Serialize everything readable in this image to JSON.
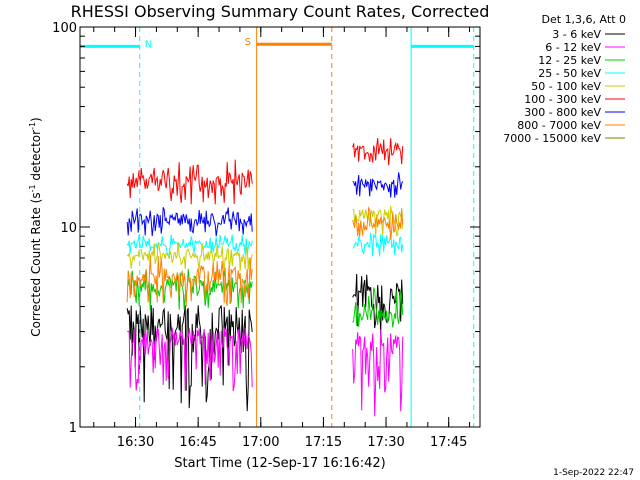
{
  "chart_data": {
    "type": "line",
    "title": "RHESSI Observing Summary Count Rates, Corrected",
    "xlabel": "Start Time (12-Sep-17 16:16:42)",
    "ylabel": "Corrected Count Rate (s",
    "ylabel_sup": "-1",
    "ylabel_mid": " detector",
    "ylabel_end": ")",
    "yscale": "log",
    "ylim": [
      1,
      100
    ],
    "xlim": [
      "16:16:42",
      "17:52:30"
    ],
    "x_ticks": [
      "16:30",
      "16:45",
      "17:00",
      "17:15",
      "17:30",
      "17:45"
    ],
    "y_ticks": [
      "1",
      "10",
      "100"
    ],
    "legend_title": "Det 1,3,6, Att 0",
    "legend_position": "top-right",
    "timestamp": "1-Sep-2022 22:47",
    "series": [
      {
        "name": "3 - 6 keV",
        "color": "#000000",
        "segments": [
          {
            "start": "16:28",
            "end": "16:58",
            "level": 3.3,
            "low": 1.2,
            "high": 4.0
          },
          {
            "start": "17:22",
            "end": "17:34",
            "level": 4.5,
            "low": 2.8,
            "high": 6.0
          }
        ]
      },
      {
        "name": "6 - 12 keV",
        "color": "#ff00ff",
        "segments": [
          {
            "start": "16:28",
            "end": "16:58",
            "level": 2.8,
            "low": 1.5,
            "high": 3.0
          },
          {
            "start": "17:22",
            "end": "17:34",
            "level": 2.6,
            "low": 1.1,
            "high": 3.0
          }
        ]
      },
      {
        "name": "12 - 25 keV",
        "color": "#00cc00",
        "segments": [
          {
            "start": "16:28",
            "end": "16:58",
            "level": 5.0,
            "low": 3.8,
            "high": 6.2
          },
          {
            "start": "17:22",
            "end": "17:34",
            "level": 3.5,
            "low": 3.0,
            "high": 5.0
          }
        ]
      },
      {
        "name": "25 - 50 keV",
        "color": "#00ffff",
        "segments": [
          {
            "start": "16:28",
            "end": "16:58",
            "level": 8.2,
            "low": 7.2,
            "high": 9.2
          },
          {
            "start": "17:22",
            "end": "17:34",
            "level": 8.2,
            "low": 7.0,
            "high": 9.5
          }
        ]
      },
      {
        "name": "50 - 100 keV",
        "color": "#cccc00",
        "segments": [
          {
            "start": "16:28",
            "end": "16:58",
            "level": 7.3,
            "low": 6.0,
            "high": 8.5
          },
          {
            "start": "17:22",
            "end": "17:34",
            "level": 11.5,
            "low": 9.0,
            "high": 13.0
          }
        ]
      },
      {
        "name": "100 - 300 keV",
        "color": "#ff0000",
        "segments": [
          {
            "start": "16:28",
            "end": "16:58",
            "level": 17.0,
            "low": 13.0,
            "high": 22.0
          },
          {
            "start": "17:22",
            "end": "17:34",
            "level": 24.0,
            "low": 20.0,
            "high": 28.0
          }
        ]
      },
      {
        "name": "300 - 800 keV",
        "color": "#0000ff",
        "segments": [
          {
            "start": "16:28",
            "end": "16:58",
            "level": 11.0,
            "low": 9.0,
            "high": 13.0
          },
          {
            "start": "17:22",
            "end": "17:34",
            "level": 16.5,
            "low": 14.0,
            "high": 19.0
          }
        ]
      },
      {
        "name": "800 - 7000 keV",
        "color": "#ff8000",
        "segments": [
          {
            "start": "16:28",
            "end": "16:58",
            "level": 5.6,
            "low": 4.0,
            "high": 7.2
          },
          {
            "start": "17:22",
            "end": "17:34",
            "level": 10.3,
            "low": 8.5,
            "high": 12.5
          }
        ]
      },
      {
        "name": "7000 - 15000 keV",
        "color": "#808000",
        "segments": []
      }
    ],
    "markers": [
      {
        "label": "N",
        "color": "#00ffff",
        "level": 80,
        "bar_start": "16:16:42",
        "bar_end": "16:31",
        "lines": [
          {
            "time": "16:16:42",
            "style": "solid"
          },
          {
            "time": "16:31",
            "style": "dashed"
          }
        ]
      },
      {
        "label": "S",
        "color": "#ff8000",
        "level": 82,
        "bar_start": "16:59",
        "bar_end": "17:17",
        "lines": [
          {
            "time": "16:59",
            "style": "solid"
          },
          {
            "time": "17:17",
            "style": "dashed"
          }
        ]
      },
      {
        "label": "",
        "color": "#00ffff",
        "level": 80,
        "bar_start": "17:36",
        "bar_end": "17:51",
        "lines": [
          {
            "time": "17:36",
            "style": "solid"
          },
          {
            "time": "17:51",
            "style": "dashed"
          }
        ]
      }
    ]
  }
}
